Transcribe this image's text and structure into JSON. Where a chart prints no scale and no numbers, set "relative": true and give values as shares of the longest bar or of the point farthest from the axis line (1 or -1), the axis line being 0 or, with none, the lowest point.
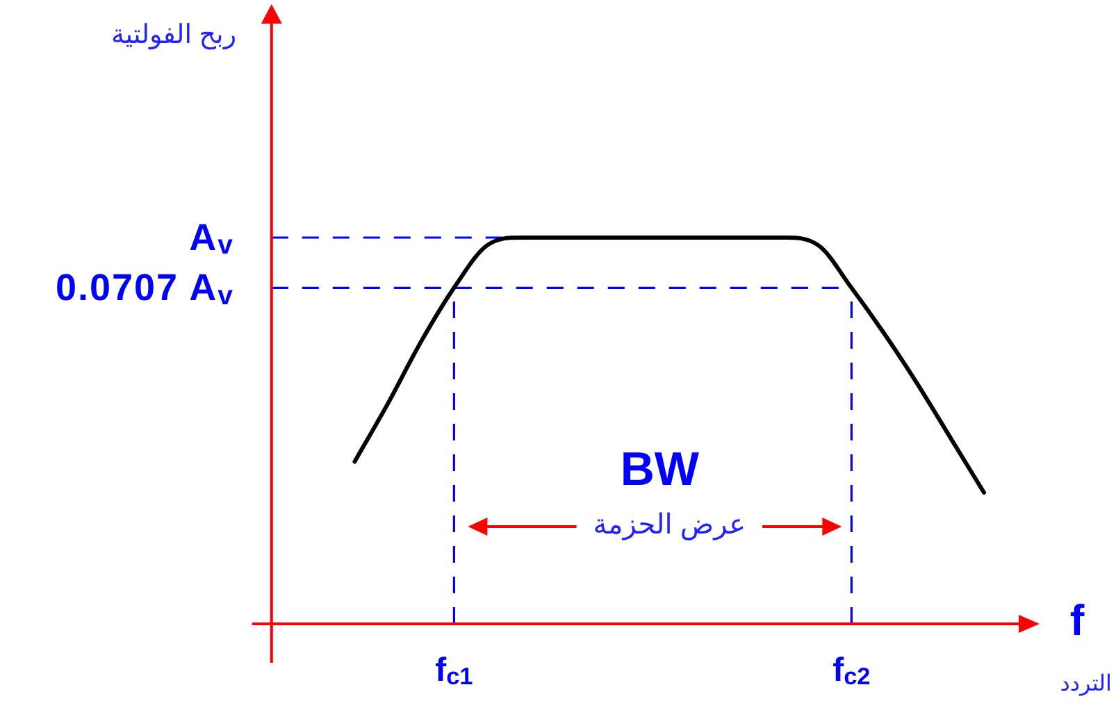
{
  "chart_data": {
    "type": "line",
    "xlabel": "f",
    "categories": [
      null,
      null,
      null,
      "f$_{c1}$",
      null,
      null,
      null,
      null,
      null,
      null,
      null,
      null,
      null,
      null,
      null,
      "f$_{c2}$",
      null,
      null,
      null,
      null
    ],
    "series": [
      {
        "color": "#000000",
        "values": [
          0.42,
          0.57,
          0.73,
          0.87,
          0.98,
          1,
          1,
          1,
          1,
          1,
          1,
          1,
          1,
          1,
          0.98,
          0.87,
          0.75,
          0.62,
          0.48,
          0.34
        ]
      }
    ],
    "relative": true,
    "ref_lines": [
      {
        "axis": "y",
        "value": 1,
        "label": "A$_{v}$",
        "color": "#0000ff",
        "line_style": "dashed"
      },
      {
        "axis": "y",
        "value": 0.87,
        "label": "0.0707 A$_{v}$",
        "color": "#0000ff",
        "line_style": "dashed"
      },
      {
        "axis": "x",
        "value": "f$_{c1}$",
        "color": "#0000ff",
        "line_style": "dashed"
      },
      {
        "axis": "x",
        "value": "f$_{c2}$",
        "color": "#0000ff",
        "line_style": "dashed"
      }
    ],
    "annotations": [
      "ربح الفولتية",
      "BW",
      "عرض الحزمة",
      "التردد"
    ]
  }
}
